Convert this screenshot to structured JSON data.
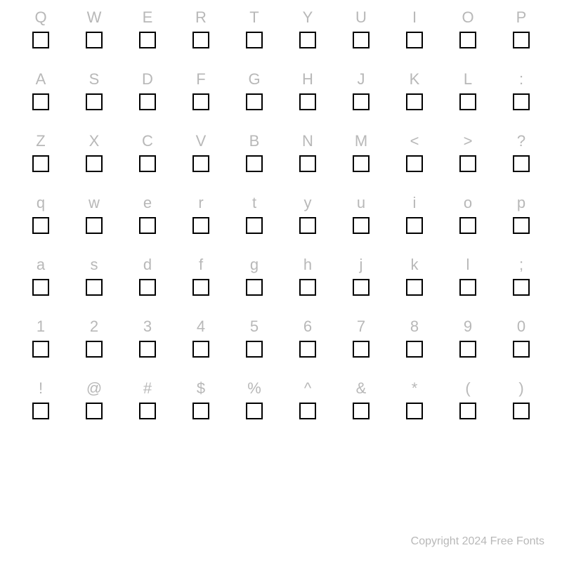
{
  "rows": [
    [
      "Q",
      "W",
      "E",
      "R",
      "T",
      "Y",
      "U",
      "I",
      "O",
      "P"
    ],
    [
      "A",
      "S",
      "D",
      "F",
      "G",
      "H",
      "J",
      "K",
      "L",
      ":"
    ],
    [
      "Z",
      "X",
      "C",
      "V",
      "B",
      "N",
      "M",
      "<",
      ">",
      "?"
    ],
    [
      "q",
      "w",
      "e",
      "r",
      "t",
      "y",
      "u",
      "i",
      "o",
      "p"
    ],
    [
      "a",
      "s",
      "d",
      "f",
      "g",
      "h",
      "j",
      "k",
      "l",
      ";"
    ],
    [
      "1",
      "2",
      "3",
      "4",
      "5",
      "6",
      "7",
      "8",
      "9",
      "0"
    ],
    [
      "!",
      "@",
      "#",
      "$",
      "%",
      "^",
      "&",
      "*",
      "(",
      ")"
    ]
  ],
  "copyright": "Copyright 2024 Free Fonts",
  "label_color": "#b8b8b8",
  "box_border_color": "#000000",
  "box_size": 24,
  "background_color": "#ffffff",
  "label_fontsize": 22,
  "copyright_fontsize": 16
}
